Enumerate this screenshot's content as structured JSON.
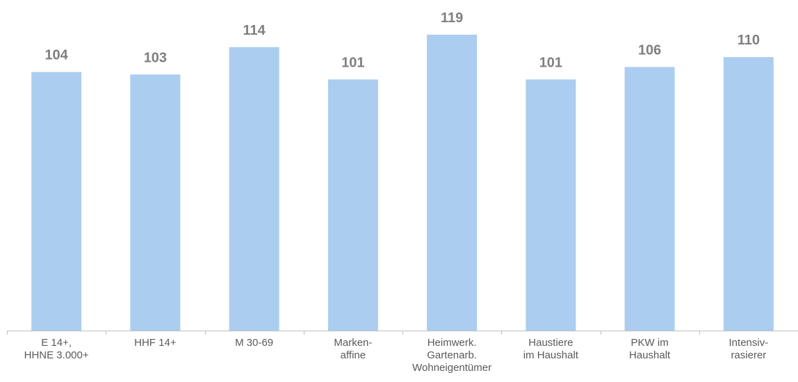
{
  "chart_data": {
    "type": "bar",
    "categories": [
      [
        "E 14+,",
        "HHNE 3.000+"
      ],
      [
        "HHF 14+"
      ],
      [
        "M 30-69"
      ],
      [
        "Marken-",
        "affine"
      ],
      [
        "Heimwerk.",
        "Gartenarb.",
        "Wohneigentümer"
      ],
      [
        "Haustiere",
        "im Haushalt"
      ],
      [
        "PKW im",
        "Haushalt"
      ],
      [
        "Intensiv-",
        "rasierer"
      ]
    ],
    "values": [
      104,
      103,
      114,
      101,
      119,
      101,
      106,
      110
    ],
    "data_labels": [
      "104",
      "103",
      "114",
      "101",
      "119",
      "101",
      "106",
      "110"
    ],
    "title": "",
    "xlabel": "",
    "ylabel": "",
    "ylim": [
      0,
      125
    ],
    "grid": false,
    "legend": "none",
    "colors": {
      "bar": "#abcdef",
      "axis": "#bfbfbf",
      "category_text": "#595959",
      "value_text": "#7f7f7f"
    }
  }
}
